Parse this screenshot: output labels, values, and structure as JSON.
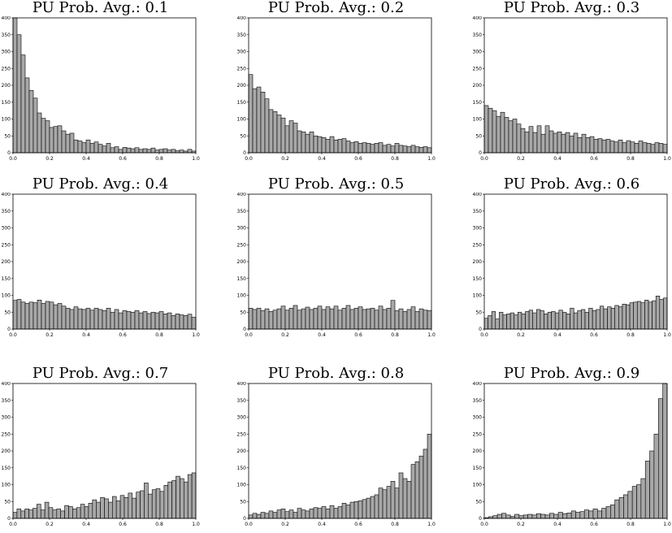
{
  "chart_data": [
    {
      "type": "bar",
      "title": "PU Prob. Avg.: 0.1",
      "xlim": [
        0,
        1
      ],
      "ylim": [
        0,
        400
      ],
      "xticks": [
        0.0,
        0.2,
        0.4,
        0.6,
        0.8,
        1.0
      ],
      "xtick_labels": [
        "0.0",
        "0.2",
        "0.4",
        "0.6",
        "0.8",
        "1.0"
      ],
      "yticks": [
        0,
        50,
        100,
        150,
        200,
        250,
        300,
        350,
        400
      ],
      "ytick_labels": [
        "0",
        "50",
        "100",
        "150",
        "200",
        "250",
        "300",
        "350",
        "400"
      ],
      "bar_color": "#a8a8a8",
      "values": [
        400,
        350,
        290,
        222,
        185,
        162,
        118,
        102,
        95,
        75,
        78,
        80,
        65,
        55,
        58,
        38,
        35,
        30,
        38,
        28,
        32,
        25,
        20,
        28,
        15,
        18,
        10,
        16,
        14,
        12,
        15,
        10,
        12,
        10,
        14,
        8,
        10,
        12,
        8,
        10,
        6,
        8,
        5,
        10,
        5
      ]
    },
    {
      "type": "bar",
      "title": "PU Prob. Avg.: 0.2",
      "xlim": [
        0,
        1
      ],
      "ylim": [
        0,
        400
      ],
      "xticks": [
        0.0,
        0.2,
        0.4,
        0.6,
        0.8,
        1.0
      ],
      "xtick_labels": [
        "0.0",
        "0.2",
        "0.4",
        "0.6",
        "0.8",
        "1.0"
      ],
      "yticks": [
        0,
        50,
        100,
        150,
        200,
        250,
        300,
        350,
        400
      ],
      "ytick_labels": [
        "0",
        "50",
        "100",
        "150",
        "200",
        "250",
        "300",
        "350",
        "400"
      ],
      "bar_color": "#a8a8a8",
      "values": [
        232,
        190,
        195,
        180,
        160,
        128,
        122,
        112,
        103,
        80,
        95,
        88,
        65,
        62,
        55,
        62,
        50,
        48,
        45,
        40,
        48,
        38,
        40,
        42,
        35,
        30,
        33,
        28,
        30,
        28,
        25,
        28,
        30,
        22,
        25,
        20,
        28,
        22,
        20,
        18,
        22,
        18,
        16,
        18,
        15
      ]
    },
    {
      "type": "bar",
      "title": "PU Prob. Avg.: 0.3",
      "xlim": [
        0,
        1
      ],
      "ylim": [
        0,
        400
      ],
      "xticks": [
        0.0,
        0.2,
        0.4,
        0.6,
        0.8,
        1.0
      ],
      "xtick_labels": [
        "0.0",
        "0.2",
        "0.4",
        "0.6",
        "0.8",
        "1.0"
      ],
      "yticks": [
        0,
        50,
        100,
        150,
        200,
        250,
        300,
        350,
        400
      ],
      "ytick_labels": [
        "0",
        "50",
        "100",
        "150",
        "200",
        "250",
        "300",
        "350",
        "400"
      ],
      "bar_color": "#a8a8a8",
      "values": [
        140,
        132,
        125,
        108,
        120,
        105,
        95,
        100,
        85,
        72,
        62,
        78,
        60,
        80,
        55,
        80,
        65,
        58,
        62,
        55,
        60,
        50,
        58,
        45,
        55,
        45,
        48,
        40,
        42,
        38,
        40,
        35,
        32,
        38,
        30,
        36,
        32,
        28,
        35,
        30,
        28,
        25,
        30,
        28,
        25
      ]
    },
    {
      "type": "bar",
      "title": "PU Prob. Avg.: 0.4",
      "xlim": [
        0,
        1
      ],
      "ylim": [
        0,
        400
      ],
      "xticks": [
        0.0,
        0.2,
        0.4,
        0.6,
        0.8,
        1.0
      ],
      "xtick_labels": [
        "0.0",
        "0.2",
        "0.4",
        "0.6",
        "0.8",
        "1.0"
      ],
      "yticks": [
        0,
        50,
        100,
        150,
        200,
        250,
        300,
        350,
        400
      ],
      "ytick_labels": [
        "0",
        "50",
        "100",
        "150",
        "200",
        "250",
        "300",
        "350",
        "400"
      ],
      "bar_color": "#a8a8a8",
      "values": [
        85,
        88,
        80,
        76,
        80,
        78,
        86,
        76,
        82,
        80,
        72,
        76,
        68,
        62,
        58,
        66,
        60,
        58,
        62,
        56,
        62,
        58,
        55,
        62,
        50,
        58,
        48,
        55,
        52,
        50,
        55,
        48,
        52,
        46,
        50,
        48,
        52,
        45,
        48,
        40,
        45,
        42,
        40,
        44,
        35
      ]
    },
    {
      "type": "bar",
      "title": "PU Prob. Avg.: 0.5",
      "xlim": [
        0,
        1
      ],
      "ylim": [
        0,
        400
      ],
      "xticks": [
        0.0,
        0.2,
        0.4,
        0.6,
        0.8,
        1.0
      ],
      "xtick_labels": [
        "0.0",
        "0.2",
        "0.4",
        "0.6",
        "0.8",
        "1.0"
      ],
      "yticks": [
        0,
        50,
        100,
        150,
        200,
        250,
        300,
        350,
        400
      ],
      "ytick_labels": [
        "0",
        "50",
        "100",
        "150",
        "200",
        "250",
        "300",
        "350",
        "400"
      ],
      "bar_color": "#a8a8a8",
      "values": [
        62,
        58,
        62,
        55,
        60,
        52,
        56,
        60,
        68,
        56,
        62,
        70,
        56,
        60,
        65,
        58,
        62,
        68,
        58,
        66,
        60,
        68,
        56,
        62,
        70,
        58,
        62,
        66,
        58,
        60,
        62,
        56,
        68,
        58,
        62,
        85,
        55,
        60,
        52,
        58,
        66,
        52,
        60,
        56,
        55
      ]
    },
    {
      "type": "bar",
      "title": "PU Prob. Avg.: 0.6",
      "xlim": [
        0,
        1
      ],
      "ylim": [
        0,
        400
      ],
      "xticks": [
        0.0,
        0.2,
        0.4,
        0.6,
        0.8,
        1.0
      ],
      "xtick_labels": [
        "0.0",
        "0.2",
        "0.4",
        "0.6",
        "0.8",
        "1.0"
      ],
      "yticks": [
        0,
        50,
        100,
        150,
        200,
        250,
        300,
        350,
        400
      ],
      "ytick_labels": [
        "0",
        "50",
        "100",
        "150",
        "200",
        "250",
        "300",
        "350",
        "400"
      ],
      "bar_color": "#a8a8a8",
      "values": [
        32,
        40,
        52,
        30,
        50,
        42,
        45,
        48,
        42,
        50,
        45,
        52,
        56,
        48,
        58,
        55,
        45,
        50,
        52,
        48,
        56,
        50,
        45,
        62,
        48,
        55,
        58,
        50,
        62,
        55,
        58,
        68,
        60,
        66,
        62,
        70,
        66,
        74,
        72,
        78,
        80,
        82,
        78,
        86,
        80,
        84,
        98,
        88,
        92
      ]
    },
    {
      "type": "bar",
      "title": "PU Prob. Avg.: 0.7",
      "xlim": [
        0,
        1
      ],
      "ylim": [
        0,
        400
      ],
      "xticks": [
        0.0,
        0.2,
        0.4,
        0.6,
        0.8,
        1.0
      ],
      "xtick_labels": [
        "0.0",
        "0.2",
        "0.4",
        "0.6",
        "0.8",
        "1.0"
      ],
      "yticks": [
        0,
        50,
        100,
        150,
        200,
        250,
        300,
        350,
        400
      ],
      "ytick_labels": [
        "0",
        "50",
        "100",
        "150",
        "200",
        "250",
        "300",
        "350",
        "400"
      ],
      "bar_color": "#a8a8a8",
      "values": [
        18,
        28,
        22,
        28,
        25,
        30,
        42,
        25,
        48,
        32,
        25,
        28,
        22,
        38,
        35,
        28,
        32,
        42,
        35,
        45,
        55,
        48,
        62,
        58,
        48,
        65,
        52,
        68,
        62,
        75,
        60,
        78,
        82,
        105,
        72,
        85,
        88,
        80,
        98,
        108,
        112,
        125,
        118,
        108,
        130,
        135
      ]
    },
    {
      "type": "bar",
      "title": "PU Prob. Avg.: 0.8",
      "xlim": [
        0,
        1
      ],
      "ylim": [
        0,
        400
      ],
      "xticks": [
        0.0,
        0.2,
        0.4,
        0.6,
        0.8,
        1.0
      ],
      "xtick_labels": [
        "0.0",
        "0.2",
        "0.4",
        "0.6",
        "0.8",
        "1.0"
      ],
      "yticks": [
        0,
        50,
        100,
        150,
        200,
        250,
        300,
        350,
        400
      ],
      "ytick_labels": [
        "0",
        "50",
        "100",
        "150",
        "200",
        "250",
        "300",
        "350",
        "400"
      ],
      "bar_color": "#a8a8a8",
      "values": [
        10,
        15,
        12,
        18,
        15,
        22,
        18,
        25,
        28,
        20,
        25,
        18,
        30,
        25,
        22,
        28,
        32,
        30,
        35,
        28,
        38,
        30,
        35,
        45,
        40,
        48,
        50,
        52,
        56,
        60,
        65,
        70,
        90,
        85,
        95,
        110,
        90,
        135,
        118,
        110,
        160,
        168,
        185,
        205,
        250
      ]
    },
    {
      "type": "bar",
      "title": "PU Prob. Avg.: 0.9",
      "xlim": [
        0,
        1
      ],
      "ylim": [
        0,
        400
      ],
      "xticks": [
        0.0,
        0.2,
        0.4,
        0.6,
        0.8,
        1.0
      ],
      "xtick_labels": [
        "0.0",
        "0.2",
        "0.4",
        "0.6",
        "0.8",
        "1.0"
      ],
      "yticks": [
        0,
        50,
        100,
        150,
        200,
        250,
        300,
        350,
        400
      ],
      "ytick_labels": [
        "0",
        "50",
        "100",
        "150",
        "200",
        "250",
        "300",
        "350",
        "400"
      ],
      "bar_color": "#a8a8a8",
      "values": [
        2,
        5,
        8,
        12,
        15,
        10,
        6,
        12,
        8,
        10,
        12,
        10,
        14,
        12,
        10,
        15,
        12,
        18,
        14,
        16,
        22,
        18,
        20,
        25,
        22,
        28,
        22,
        30,
        35,
        40,
        55,
        62,
        70,
        80,
        95,
        100,
        118,
        170,
        200,
        250,
        355,
        400
      ]
    }
  ]
}
